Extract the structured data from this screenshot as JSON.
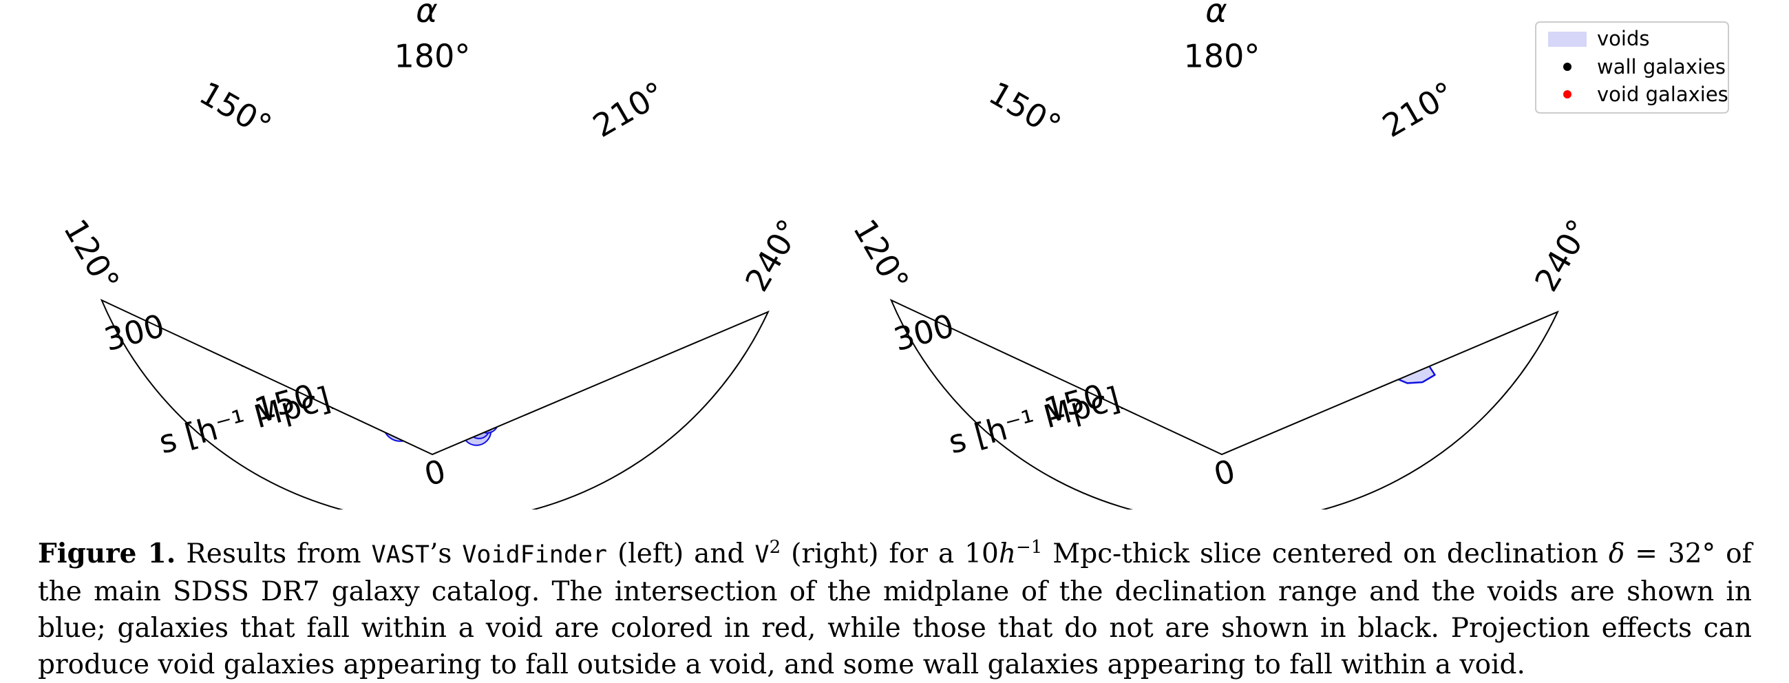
{
  "colors": {
    "void_fill": "#b8b8f5",
    "void_edge": "#1010e0",
    "wall_galaxy": "#000000",
    "void_galaxy": "#ff0000",
    "legend_void_fill": "#d6d6f8"
  },
  "panels": [
    {
      "id": "voidfinder",
      "alpha_label": "α",
      "ra_ticks": [
        {
          "label": "120°",
          "value": 120
        },
        {
          "label": "150°",
          "value": 150
        },
        {
          "label": "180°",
          "value": 180
        },
        {
          "label": "210°",
          "value": 210
        },
        {
          "label": "240°",
          "value": 240
        }
      ],
      "r_ticks": [
        {
          "label": "0",
          "value": 0
        },
        {
          "label": "150",
          "value": 150
        },
        {
          "label": "300",
          "value": 300
        }
      ],
      "r_axis_label": "s [h⁻¹ Mpc]"
    },
    {
      "id": "v2",
      "alpha_label": "α",
      "ra_ticks": [
        {
          "label": "120°",
          "value": 120
        },
        {
          "label": "150°",
          "value": 150
        },
        {
          "label": "180°",
          "value": 180
        },
        {
          "label": "210°",
          "value": 210
        },
        {
          "label": "240°",
          "value": 240
        }
      ],
      "r_ticks": [
        {
          "label": "0",
          "value": 0
        },
        {
          "label": "150",
          "value": 150
        },
        {
          "label": "300",
          "value": 300
        }
      ],
      "r_axis_label": "s [h⁻¹ Mpc]"
    }
  ],
  "legend": {
    "voids": "voids",
    "wall_galaxies": "wall galaxies",
    "void_galaxies": "void galaxies"
  },
  "caption": {
    "label": "Figure 1.",
    "t1": " Results from ",
    "vast": "VAST",
    "t2": "’s ",
    "voidfinder": "VoidFinder",
    "t3": " (left) and ",
    "v": "V",
    "v_sup": "2",
    "t4": " (right) for a 10",
    "h": "h",
    "h_sup": "−1",
    "t5": " Mpc-thick slice centered on declination ",
    "delta": "δ",
    "t6": " = 32° of the main SDSS DR7 galaxy catalog. The intersection of the midplane of the declination range and the voids are shown in blue; galaxies that fall within a void are colored in red, while those that do not are shown in black. Projection effects can produce void galaxies appearing to fall outside a void, and some wall galaxies appearing to fall within a void."
  }
}
